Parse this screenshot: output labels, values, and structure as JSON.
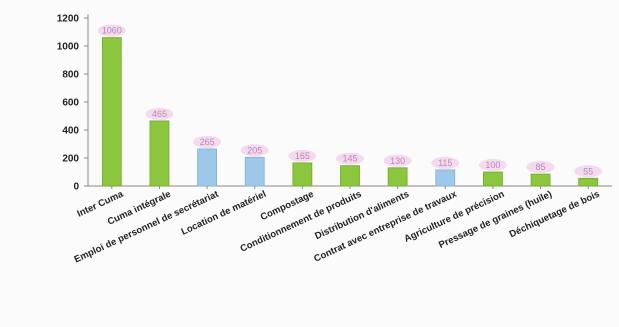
{
  "chart_data": {
    "type": "bar",
    "categories": [
      "Inter Cuma",
      "Cuma intégrale",
      "Emploi de personnel de secrétariat",
      "Location de matériel",
      "Compostage",
      "Conditionnement de produits",
      "Distribution d'aliments",
      "Contrat avec entreprise de travaux",
      "Agriculture de précision",
      "Pressage de graines (huile)",
      "Déchiquetage de bois"
    ],
    "values": [
      1060,
      465,
      265,
      205,
      165,
      145,
      130,
      115,
      100,
      85,
      55
    ],
    "data_labels": [
      "1060",
      "465",
      "265",
      "205",
      "165",
      "145",
      "130",
      "115",
      "100",
      "85",
      "55"
    ],
    "bar_colors": [
      "#8cc63f",
      "#8cc63f",
      "#9dc8ea",
      "#9dc8ea",
      "#8cc63f",
      "#8cc63f",
      "#8cc63f",
      "#9dc8ea",
      "#8cc63f",
      "#8cc63f",
      "#8cc63f"
    ],
    "bar_edge_colors": [
      "#6faa2a",
      "#6faa2a",
      "#7db0db",
      "#7db0db",
      "#6faa2a",
      "#6faa2a",
      "#6faa2a",
      "#7db0db",
      "#6faa2a",
      "#6faa2a",
      "#6faa2a"
    ],
    "ylim": [
      0,
      1200
    ],
    "yticks": [
      0,
      200,
      400,
      600,
      800,
      1000,
      1200
    ],
    "title": "",
    "xlabel": "",
    "ylabel": "",
    "grid": false,
    "legend": "none",
    "label_color": "#b48ab0",
    "label_halo_color": "#f3cdeb",
    "axis_color": "#8a8a8a",
    "tick_text_color": "#222222"
  }
}
